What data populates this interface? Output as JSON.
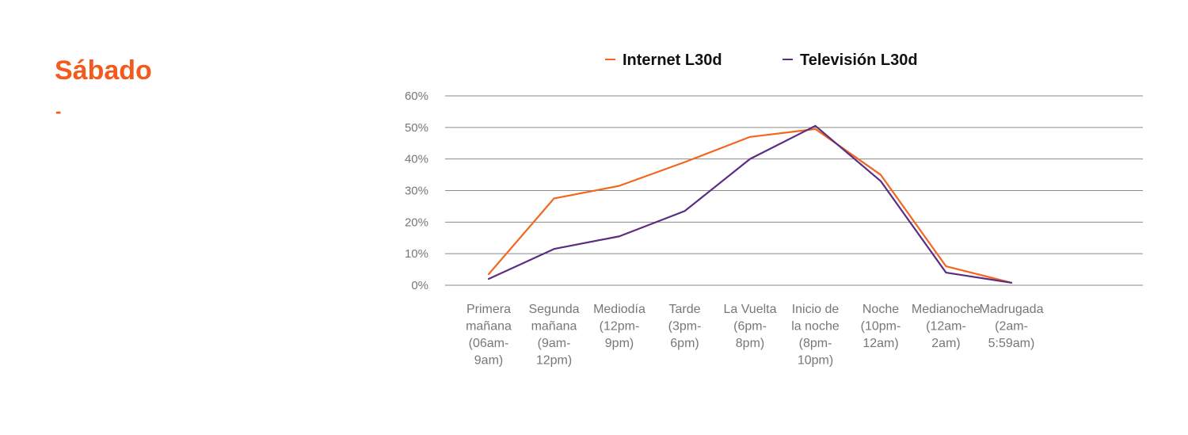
{
  "page": {
    "title": "Sábado",
    "dash": "-"
  },
  "colors": {
    "accent": "#f25a1e",
    "internet": "#f2661e",
    "television": "#5a2d82",
    "grid": "#8a8a8a"
  },
  "chart_data": {
    "type": "line",
    "title": "",
    "xlabel": "",
    "ylabel": "",
    "ylim": [
      0,
      60
    ],
    "yticks": [
      0,
      10,
      20,
      30,
      40,
      50,
      60
    ],
    "ytick_suffix": "%",
    "grid": true,
    "legend_position": "top",
    "categories": [
      [
        "Primera",
        "mañana",
        "(06am-",
        "9am)"
      ],
      [
        "Segunda",
        "mañana",
        "(9am-",
        "12pm)"
      ],
      [
        "Mediodía",
        "(12pm-",
        "9pm)"
      ],
      [
        "Tarde",
        "(3pm-",
        "6pm)"
      ],
      [
        "La Vuelta",
        "(6pm-",
        "8pm)"
      ],
      [
        "Inicio de",
        "la noche",
        "(8pm-",
        "10pm)"
      ],
      [
        "Noche",
        "(10pm-",
        "12am)"
      ],
      [
        "Medianoche",
        "(12am-",
        "2am)"
      ],
      [
        "Madrugada",
        "(2am-",
        "5:59am)"
      ]
    ],
    "series": [
      {
        "name": "Internet L30d",
        "color": "#f2661e",
        "values": [
          3.5,
          27.5,
          31.5,
          39,
          47,
          49.5,
          35,
          6,
          0.8
        ]
      },
      {
        "name": "Televisión L30d",
        "color": "#5a2d82",
        "values": [
          2,
          11.5,
          15.5,
          23.5,
          40,
          50.5,
          33,
          4,
          0.8
        ]
      }
    ]
  }
}
